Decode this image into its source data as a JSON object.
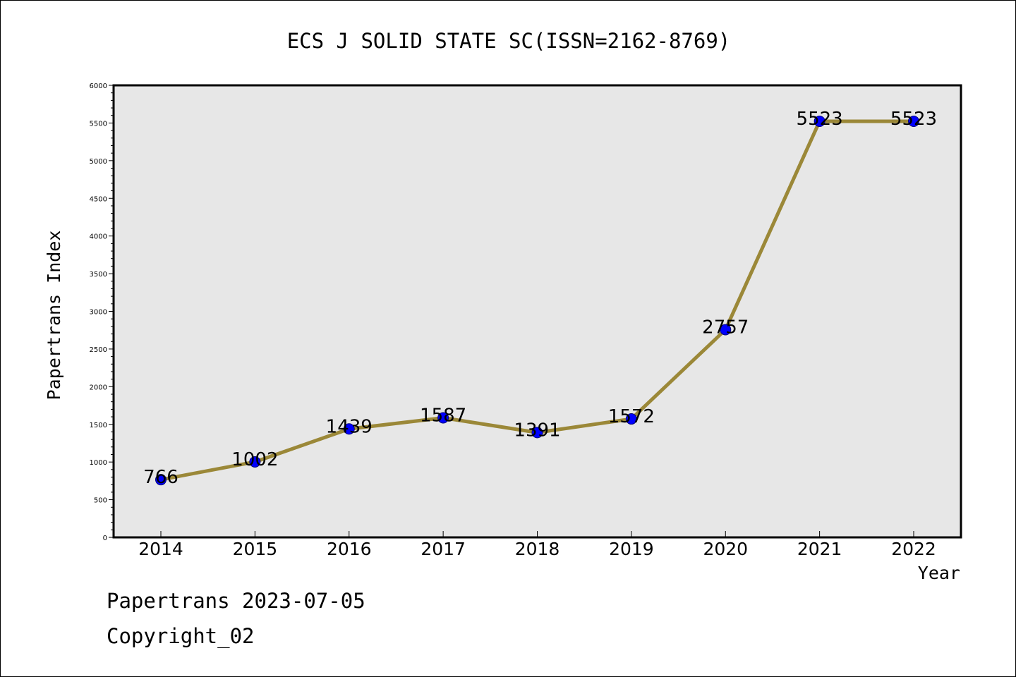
{
  "footer": {
    "date_line": "Papertrans 2023-07-05",
    "copyright": "Copyright_02"
  },
  "colors": {
    "plot_background": "#e7e7e7",
    "line": "#9b8838",
    "marker_fill": "#0000ff",
    "marker_stroke": "#00007a"
  },
  "chart_data": {
    "type": "line",
    "title": "ECS J SOLID STATE SC(ISSN=2162-8769)",
    "xlabel": "Year",
    "ylabel": "Papertrans Index",
    "categories": [
      "2014",
      "2015",
      "2016",
      "2017",
      "2018",
      "2019",
      "2020",
      "2021",
      "2022"
    ],
    "series": [
      {
        "values": [
          766,
          1002,
          1439,
          1587,
          1391,
          1572,
          2757,
          5523,
          5523
        ]
      }
    ],
    "data_labels": [
      "766",
      "1002",
      "1439",
      "1587",
      "1391",
      "1572",
      "2757",
      "5523",
      "5523"
    ],
    "ylim": [
      0,
      6000
    ],
    "yticks": [
      "0",
      "500",
      "1000",
      "1500",
      "2000",
      "2500",
      "3000",
      "3500",
      "4000",
      "4500",
      "5000",
      "5500",
      "6000"
    ],
    "grid": false,
    "legend": "none"
  }
}
